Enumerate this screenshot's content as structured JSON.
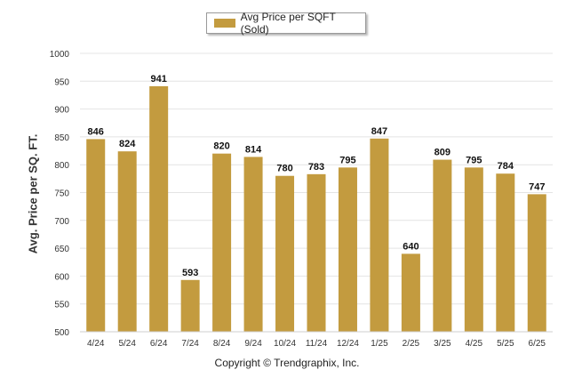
{
  "chart_data": {
    "type": "bar",
    "legend_label": "Avg Price per SQFT (Sold)",
    "legend_position": "top-center",
    "ylabel": "Avg. Price per SQ. FT.",
    "xlabel": "",
    "ylim": [
      500,
      1000
    ],
    "yticks": [
      "500",
      "550",
      "600",
      "650",
      "700",
      "750",
      "800",
      "850",
      "900",
      "950",
      "1000"
    ],
    "grid": true,
    "bar_color": "#c39b3f",
    "categories": [
      "4/24",
      "5/24",
      "6/24",
      "7/24",
      "8/24",
      "9/24",
      "10/24",
      "11/24",
      "12/24",
      "1/25",
      "2/25",
      "3/25",
      "4/25",
      "5/25",
      "6/25"
    ],
    "values": [
      846,
      824,
      941,
      593,
      820,
      814,
      780,
      783,
      795,
      847,
      640,
      809,
      795,
      784,
      747
    ]
  },
  "footer": "Copyright © Trendgraphix, Inc."
}
